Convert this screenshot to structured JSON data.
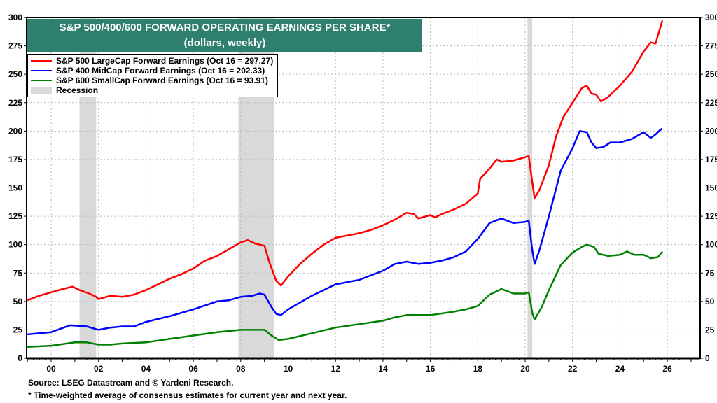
{
  "chart_data": {
    "type": "line",
    "title": "S&P 500/400/600 FORWARD OPERATING EARNINGS PER SHARE*",
    "subtitle": "(dollars, weekly)",
    "xlim": [
      1999,
      2027.5
    ],
    "ylim": [
      0,
      300
    ],
    "yticks": [
      0,
      25,
      50,
      75,
      100,
      125,
      150,
      175,
      200,
      225,
      250,
      275,
      300
    ],
    "xtick_years": [
      2000,
      2002,
      2004,
      2006,
      2008,
      2010,
      2012,
      2014,
      2016,
      2018,
      2020,
      2022,
      2024,
      2026
    ],
    "xtick_labels": [
      "00",
      "02",
      "04",
      "06",
      "08",
      "10",
      "12",
      "14",
      "16",
      "18",
      "20",
      "22",
      "24",
      "26"
    ],
    "grid": true,
    "legend_placement": "top-left",
    "recessions": [
      [
        2001.2,
        2001.9
      ],
      [
        2007.9,
        2009.4
      ],
      [
        2020.1,
        2020.3
      ]
    ],
    "recession_label": "Recession",
    "recession_color": "#d9d9d9",
    "series": [
      {
        "name": "S&P 500 LargeCap Forward Earnings (Oct 16 = 297.27)",
        "color": "#ff0000",
        "x": [
          1999,
          1999.5,
          2000,
          2000.5,
          2000.9,
          2001.2,
          2001.6,
          2001.9,
          2002,
          2002.5,
          2003,
          2003.5,
          2004,
          2004.5,
          2005,
          2005.5,
          2006,
          2006.5,
          2007,
          2007.5,
          2008,
          2008.3,
          2008.6,
          2009,
          2009.2,
          2009.5,
          2009.7,
          2010,
          2010.5,
          2011,
          2011.5,
          2012,
          2012.5,
          2013,
          2013.5,
          2014,
          2014.5,
          2015,
          2015.3,
          2015.5,
          2016,
          2016.2,
          2016.5,
          2017,
          2017.5,
          2018,
          2018.1,
          2018.5,
          2018.8,
          2019,
          2019.5,
          2020,
          2020.15,
          2020.3,
          2020.4,
          2020.6,
          2021,
          2021.3,
          2021.6,
          2022,
          2022.4,
          2022.6,
          2022.8,
          2023,
          2023.2,
          2023.5,
          2024,
          2024.5,
          2025,
          2025.3,
          2025.5,
          2025.79
        ],
        "y": [
          51,
          55,
          58,
          61,
          63,
          60,
          57,
          54,
          52,
          55,
          54,
          56,
          60,
          65,
          70,
          74,
          79,
          86,
          90,
          96,
          102,
          104,
          101,
          99,
          85,
          68,
          64,
          72,
          83,
          92,
          100,
          106,
          108,
          110,
          113,
          117,
          122,
          128,
          127,
          123,
          126,
          124,
          127,
          131,
          136,
          145,
          158,
          167,
          175,
          173,
          174,
          177,
          178,
          155,
          141,
          148,
          170,
          195,
          212,
          225,
          238,
          240,
          233,
          232,
          226,
          230,
          240,
          252,
          270,
          278,
          277,
          297.27
        ]
      },
      {
        "name": "S&P 400 MidCap Forward Earnings (Oct 16 = 202.33)",
        "color": "#0000ff",
        "x": [
          1999,
          2000,
          2000.8,
          2001.5,
          2002,
          2002.5,
          2003,
          2003.5,
          2004,
          2005,
          2006,
          2007,
          2007.5,
          2008,
          2008.5,
          2008.8,
          2009,
          2009.3,
          2009.5,
          2009.7,
          2010,
          2011,
          2011.5,
          2012,
          2013,
          2014,
          2014.5,
          2015,
          2015.5,
          2016,
          2016.5,
          2017,
          2017.5,
          2018,
          2018.5,
          2019,
          2019.5,
          2020,
          2020.15,
          2020.3,
          2020.4,
          2020.6,
          2021,
          2021.5,
          2022,
          2022.3,
          2022.6,
          2022.8,
          2023,
          2023.3,
          2023.6,
          2024,
          2024.5,
          2025,
          2025.3,
          2025.5,
          2025.7,
          2025.79
        ],
        "y": [
          21,
          23,
          29,
          28,
          25,
          27,
          28,
          28,
          32,
          37,
          43,
          50,
          51,
          54,
          55,
          57,
          56,
          45,
          39,
          38,
          43,
          55,
          60,
          65,
          69,
          77,
          83,
          85,
          83,
          84,
          86,
          89,
          94,
          105,
          119,
          123,
          119,
          120,
          121,
          95,
          83,
          95,
          125,
          165,
          185,
          200,
          199,
          190,
          185,
          186,
          190,
          190,
          193,
          199,
          194,
          197,
          201,
          202.33
        ]
      },
      {
        "name": "S&P 600 SmallCap Forward Earnings (Oct 16 = 93.91)",
        "color": "#008000",
        "x": [
          1999,
          2000,
          2001,
          2001.5,
          2002,
          2002.5,
          2003,
          2004,
          2005,
          2006,
          2007,
          2008,
          2009,
          2009.3,
          2009.6,
          2010,
          2011,
          2012,
          2013,
          2014,
          2014.5,
          2015,
          2016,
          2017,
          2017.5,
          2018,
          2018.5,
          2019,
          2019.5,
          2020,
          2020.15,
          2020.3,
          2020.4,
          2020.7,
          2021,
          2021.5,
          2022,
          2022.4,
          2022.6,
          2022.9,
          2023.1,
          2023.5,
          2024,
          2024.3,
          2024.6,
          2025,
          2025.3,
          2025.6,
          2025.79
        ],
        "y": [
          10,
          11,
          14,
          14,
          12,
          12,
          13,
          14,
          17,
          20,
          23,
          25,
          25,
          20,
          16,
          17,
          22,
          27,
          30,
          33,
          36,
          38,
          38,
          41,
          43,
          46,
          56,
          61,
          57,
          57,
          58,
          40,
          34,
          45,
          60,
          82,
          93,
          98,
          100,
          98,
          92,
          90,
          91,
          94,
          91,
          91,
          88,
          89,
          93.91
        ]
      }
    ]
  },
  "footer": {
    "source": "Source: LSEG Datastream and © Yardeni Research.",
    "note": "* Time-weighted average of consensus estimates for current year and next year."
  }
}
